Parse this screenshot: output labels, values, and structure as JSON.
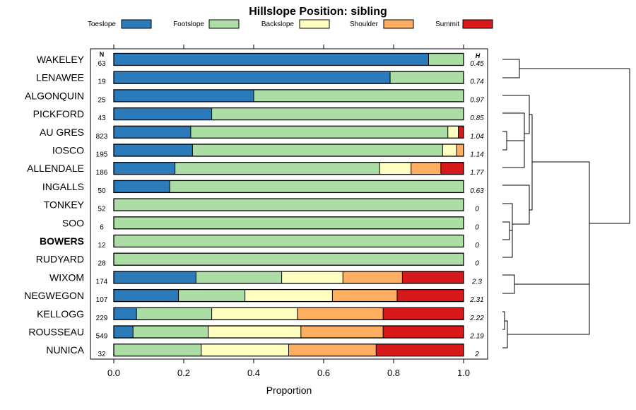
{
  "chart_data": {
    "type": "bar",
    "orientation": "horizontal",
    "stacked": true,
    "title": "Hillslope Position: sibling",
    "xlabel": "Proportion",
    "ylabel": "",
    "xlim": [
      0,
      1
    ],
    "xticks": [
      "0.0",
      "0.2",
      "0.4",
      "0.6",
      "0.8",
      "1.0"
    ],
    "n_header": "N",
    "h_header": "H",
    "legend_position": "top",
    "series": [
      {
        "name": "Toeslope",
        "color": "#2B7BBA"
      },
      {
        "name": "Footslope",
        "color": "#ABDDA4"
      },
      {
        "name": "Backslope",
        "color": "#FFFFBF"
      },
      {
        "name": "Shoulder",
        "color": "#FDAE61"
      },
      {
        "name": "Summit",
        "color": "#D7191C"
      }
    ],
    "categories": [
      {
        "name": "WAKELEY",
        "n": "63",
        "h": "0.45",
        "bold": false,
        "values": [
          0.9,
          0.1,
          0,
          0,
          0
        ]
      },
      {
        "name": "LENAWEE",
        "n": "19",
        "h": "0.74",
        "bold": false,
        "values": [
          0.79,
          0.21,
          0,
          0,
          0
        ]
      },
      {
        "name": "ALGONQUIN",
        "n": "25",
        "h": "0.97",
        "bold": false,
        "values": [
          0.4,
          0.6,
          0,
          0,
          0
        ]
      },
      {
        "name": "PICKFORD",
        "n": "43",
        "h": "0.85",
        "bold": false,
        "values": [
          0.28,
          0.72,
          0,
          0,
          0
        ]
      },
      {
        "name": "AU GRES",
        "n": "823",
        "h": "1.04",
        "bold": false,
        "values": [
          0.22,
          0.735,
          0.03,
          0,
          0.015
        ]
      },
      {
        "name": "IOSCO",
        "n": "195",
        "h": "1.14",
        "bold": false,
        "values": [
          0.225,
          0.715,
          0.04,
          0.02,
          0
        ]
      },
      {
        "name": "ALLENDALE",
        "n": "186",
        "h": "1.77",
        "bold": false,
        "values": [
          0.175,
          0.585,
          0.09,
          0.085,
          0.065
        ]
      },
      {
        "name": "INGALLS",
        "n": "50",
        "h": "0.63",
        "bold": false,
        "values": [
          0.16,
          0.84,
          0,
          0,
          0
        ]
      },
      {
        "name": "TONKEY",
        "n": "52",
        "h": "0",
        "bold": false,
        "values": [
          0,
          1.0,
          0,
          0,
          0
        ]
      },
      {
        "name": "SOO",
        "n": "6",
        "h": "0",
        "bold": false,
        "values": [
          0,
          1.0,
          0,
          0,
          0
        ]
      },
      {
        "name": "BOWERS",
        "n": "12",
        "h": "0",
        "bold": true,
        "values": [
          0,
          1.0,
          0,
          0,
          0
        ]
      },
      {
        "name": "RUDYARD",
        "n": "28",
        "h": "0",
        "bold": false,
        "values": [
          0,
          1.0,
          0,
          0,
          0
        ]
      },
      {
        "name": "WIXOM",
        "n": "174",
        "h": "2.3",
        "bold": false,
        "values": [
          0.235,
          0.245,
          0.175,
          0.17,
          0.175
        ]
      },
      {
        "name": "NEGWEGON",
        "n": "107",
        "h": "2.31",
        "bold": false,
        "values": [
          0.185,
          0.19,
          0.25,
          0.185,
          0.19
        ]
      },
      {
        "name": "KELLOGG",
        "n": "229",
        "h": "2.22",
        "bold": false,
        "values": [
          0.065,
          0.215,
          0.245,
          0.245,
          0.23
        ]
      },
      {
        "name": "ROUSSEAU",
        "n": "549",
        "h": "2.19",
        "bold": false,
        "values": [
          0.055,
          0.215,
          0.265,
          0.235,
          0.23
        ]
      },
      {
        "name": "NUNICA",
        "n": "32",
        "h": "2",
        "bold": false,
        "values": [
          0,
          0.25,
          0.25,
          0.25,
          0.25
        ]
      }
    ]
  }
}
